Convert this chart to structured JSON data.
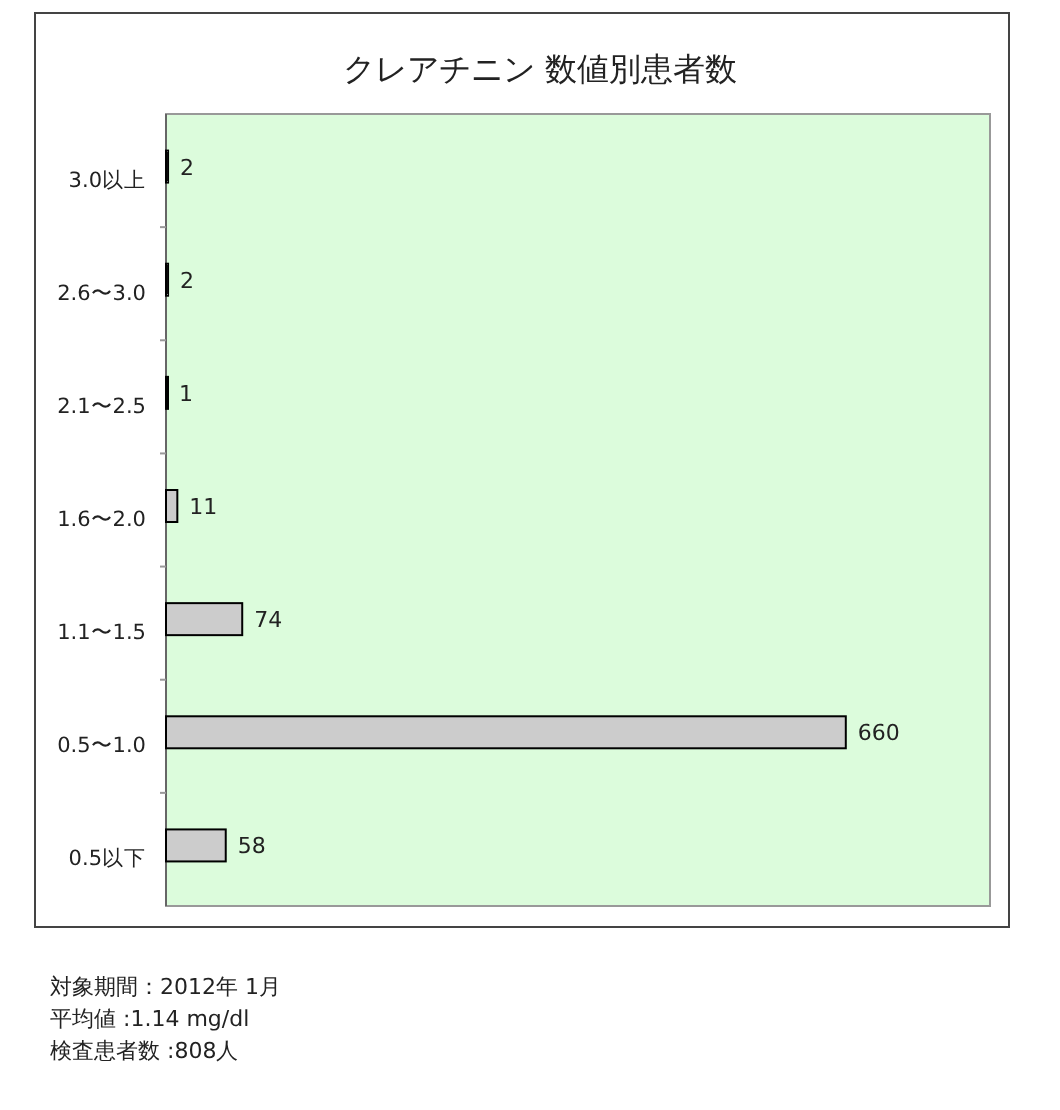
{
  "chart_data": {
    "type": "bar",
    "orientation": "horizontal",
    "title": "クレアチニン 数値別患者数",
    "categories": [
      "3.0以上",
      "2.6〜3.0",
      "2.1〜2.5",
      "1.6〜2.0",
      "1.1〜1.5",
      "0.5〜1.0",
      "0.5以下"
    ],
    "values": [
      2,
      2,
      1,
      11,
      74,
      660,
      58
    ],
    "color": "#cccccc",
    "xlim": [
      0,
      800
    ],
    "tick_labels": "y",
    "data_labels": true,
    "annotations": [
      "対象期間：2012年 1月",
      "平均値 :1.14 mg/dl",
      "検査患者数 :808人"
    ]
  }
}
